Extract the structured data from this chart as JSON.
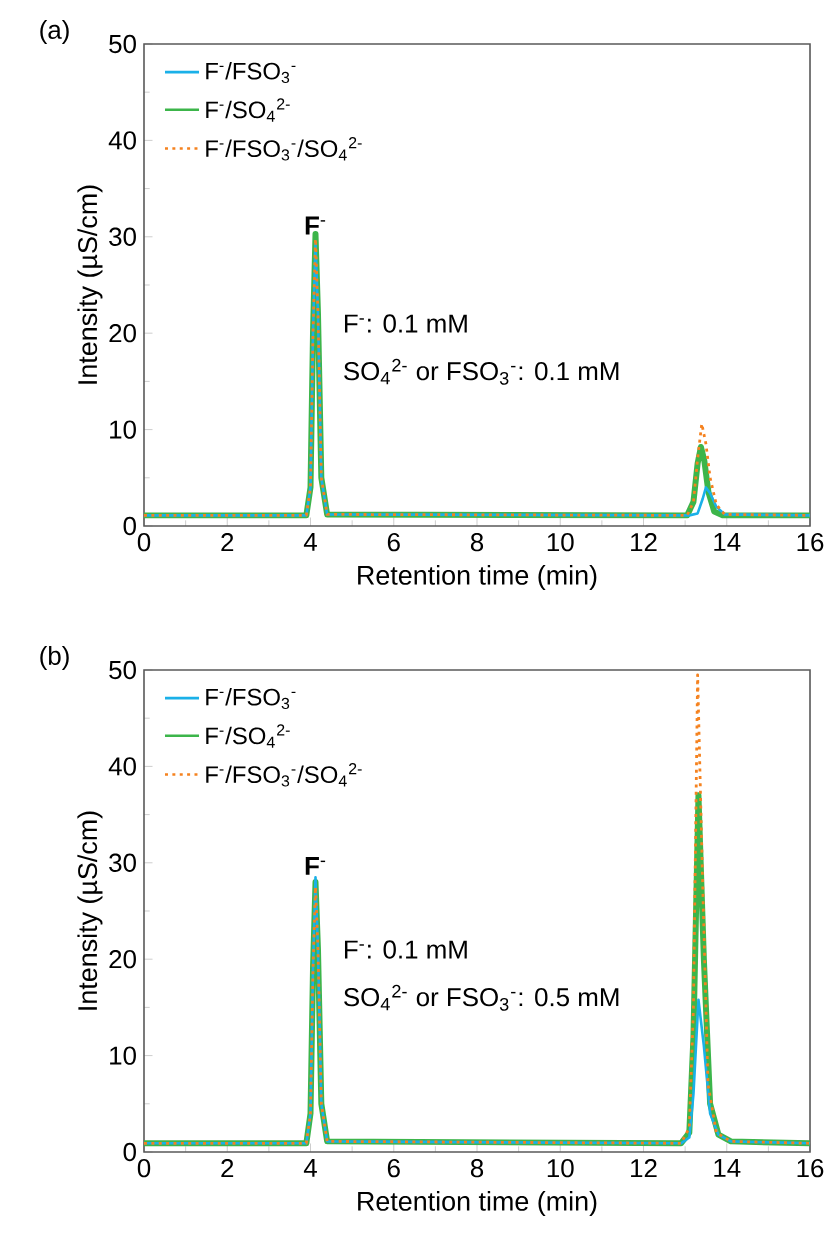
{
  "chart_data": [
    {
      "type": "line",
      "title": "(a)",
      "xlabel": "Retention time (min)",
      "ylabel": "Intensity (µS/cm)",
      "xlim": [
        0,
        16
      ],
      "ylim": [
        0,
        50
      ],
      "xticks": [
        0,
        2,
        4,
        6,
        8,
        10,
        12,
        14,
        16
      ],
      "yticks": [
        0,
        10,
        20,
        30,
        40,
        50
      ],
      "grid": false,
      "legend": "top left",
      "marker": "none",
      "annotations": [
        {
          "text": "**F**$^{-}$",
          "x": 4.12,
          "y": 30
        },
        "F$^{-}$: 0.1 mM",
        "SO$_{4}$$^{2-}$ or FSO$_{3}$$^{-}$: 0.1 mM"
      ],
      "series": [
        {
          "name": "F$^{-}$/FSO$_{3}$$^{-}$",
          "color": "#1ab0e8",
          "line_style": "solid",
          "x": [
            0,
            3.9,
            4.0,
            4.06,
            4.12,
            4.18,
            4.26,
            4.4,
            13.1,
            13.3,
            13.42,
            13.5,
            13.6,
            13.75,
            13.95,
            16
          ],
          "values": [
            1.1,
            1.1,
            4,
            20,
            29.5,
            22,
            5,
            1.2,
            1.1,
            1.3,
            2.8,
            4.0,
            3.4,
            2.0,
            1.2,
            1.1
          ]
        },
        {
          "name": "F$^{-}$/SO$_{4}$$^{2-}$",
          "color": "#3cb54a",
          "line_style": "solid",
          "x": [
            0,
            3.9,
            4.0,
            4.06,
            4.12,
            4.18,
            4.26,
            4.4,
            13.05,
            13.2,
            13.3,
            13.38,
            13.46,
            13.56,
            13.7,
            13.9,
            16
          ],
          "values": [
            1.1,
            1.1,
            4,
            20,
            30.3,
            22,
            5,
            1.2,
            1.1,
            2.5,
            6.5,
            8.2,
            6.8,
            3.5,
            1.5,
            1.1,
            1.1
          ]
        },
        {
          "name": "F$^{-}$/FSO$_{3}$$^{-}$/SO$_{4}$$^{2-}$",
          "color": "#f5821f",
          "line_style": "dotted",
          "x": [
            0,
            3.9,
            4.0,
            4.06,
            4.12,
            4.18,
            4.26,
            4.4,
            13.05,
            13.2,
            13.3,
            13.4,
            13.5,
            13.6,
            13.75,
            13.95,
            16
          ],
          "values": [
            1.1,
            1.1,
            4,
            20,
            29.8,
            22,
            5,
            1.2,
            1.1,
            2.5,
            7,
            10.6,
            8.5,
            5,
            2.2,
            1.2,
            1.1
          ]
        }
      ]
    },
    {
      "type": "line",
      "title": "(b)",
      "xlabel": "Retention time (min)",
      "ylabel": "Intensity (µS/cm)",
      "xlim": [
        0,
        16
      ],
      "ylim": [
        0,
        50
      ],
      "xticks": [
        0,
        2,
        4,
        6,
        8,
        10,
        12,
        14,
        16
      ],
      "yticks": [
        0,
        10,
        20,
        30,
        40,
        50
      ],
      "grid": false,
      "legend": "top left",
      "marker": "none",
      "annotations": [
        {
          "text": "**F**$^{-}$",
          "x": 4.12,
          "y": 28.5
        },
        "F$^{-}$: 0.1 mM",
        "SO$_{4}$$^{2-}$ or FSO$_{3}$$^{-}$: 0.5 mM"
      ],
      "series": [
        {
          "name": "F$^{-}$/FSO$_{3}$$^{-}$",
          "color": "#1ab0e8",
          "line_style": "solid",
          "x": [
            0,
            3.9,
            4.0,
            4.06,
            4.12,
            4.18,
            4.26,
            4.4,
            12.9,
            13.1,
            13.2,
            13.32,
            13.45,
            13.6,
            13.8,
            14.1,
            16
          ],
          "values": [
            0.9,
            0.9,
            4,
            19,
            28.5,
            21,
            5,
            1.1,
            0.9,
            1.5,
            6,
            15.8,
            11,
            4,
            1.8,
            1.1,
            0.9
          ]
        },
        {
          "name": "F$^{-}$/SO$_{4}$$^{2-}$",
          "color": "#3cb54a",
          "line_style": "solid",
          "x": [
            0,
            3.9,
            4.0,
            4.06,
            4.12,
            4.18,
            4.26,
            4.4,
            12.9,
            13.1,
            13.2,
            13.32,
            13.45,
            13.6,
            13.8,
            14.1,
            16
          ],
          "values": [
            0.9,
            0.9,
            4,
            19,
            28,
            21,
            5,
            1.1,
            0.9,
            2,
            12,
            37,
            20,
            5,
            1.8,
            1.1,
            0.9
          ]
        },
        {
          "name": "F$^{-}$/FSO$_{3}$$^{-}$/SO$_{4}$$^{2-}$",
          "color": "#f5821f",
          "line_style": "dotted",
          "x": [
            0,
            3.9,
            4.0,
            4.06,
            4.12,
            4.18,
            4.26,
            4.4,
            12.9,
            13.1,
            13.2,
            13.3,
            13.42,
            13.55,
            13.75,
            14.1,
            16
          ],
          "values": [
            0.9,
            0.9,
            4,
            19,
            27.5,
            21,
            5,
            1.1,
            0.9,
            2.5,
            15,
            49.5,
            28,
            7,
            2,
            1.1,
            0.9
          ]
        }
      ]
    }
  ]
}
